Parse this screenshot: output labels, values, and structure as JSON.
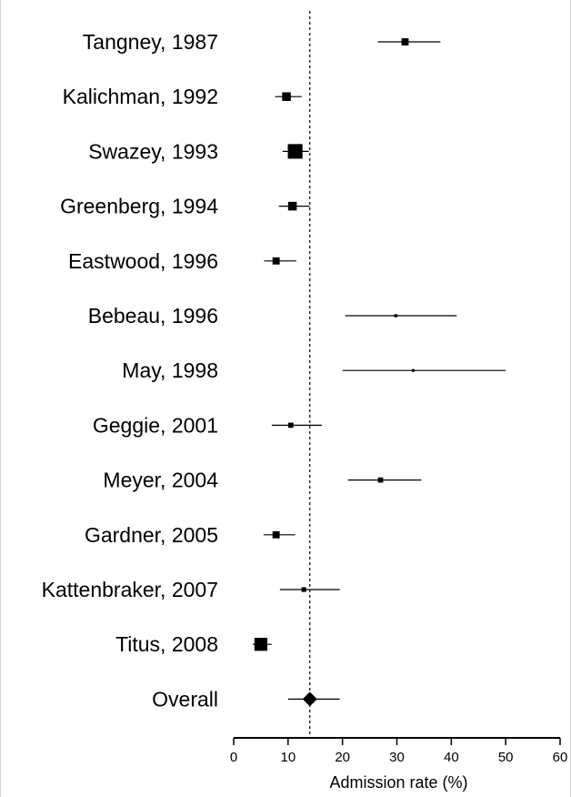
{
  "chart_data": {
    "type": "forest",
    "xlabel": "Admission rate (%)",
    "xlim": [
      0,
      60
    ],
    "xticks": [
      0,
      10,
      20,
      30,
      40,
      50,
      60
    ],
    "reference_line": 14,
    "grid": false,
    "studies": [
      {
        "label": "Tangney, 1987",
        "estimate": 31.5,
        "lower": 26.5,
        "upper": 38.0,
        "weight": 2
      },
      {
        "label": "Kalichman, 1992",
        "estimate": 9.7,
        "lower": 7.6,
        "upper": 12.5,
        "weight": 3
      },
      {
        "label": "Swazey, 1993",
        "estimate": 11.3,
        "lower": 9.0,
        "upper": 13.8,
        "weight": 9
      },
      {
        "label": "Greenberg, 1994",
        "estimate": 10.8,
        "lower": 8.3,
        "upper": 14.0,
        "weight": 3
      },
      {
        "label": "Eastwood, 1996",
        "estimate": 7.8,
        "lower": 5.6,
        "upper": 11.5,
        "weight": 2
      },
      {
        "label": "Bebeau, 1996",
        "estimate": 29.8,
        "lower": 20.5,
        "upper": 41.0,
        "weight": 0.3
      },
      {
        "label": "May, 1998",
        "estimate": 33.0,
        "lower": 20.0,
        "upper": 50.0,
        "weight": 0.2
      },
      {
        "label": "Geggie, 2001",
        "estimate": 10.5,
        "lower": 7.0,
        "upper": 16.2,
        "weight": 1
      },
      {
        "label": "Meyer, 2004",
        "estimate": 27.0,
        "lower": 21.0,
        "upper": 34.5,
        "weight": 1
      },
      {
        "label": "Gardner, 2005",
        "estimate": 7.8,
        "lower": 5.5,
        "upper": 11.3,
        "weight": 2
      },
      {
        "label": "Kattenbraker, 2007",
        "estimate": 12.9,
        "lower": 8.5,
        "upper": 19.5,
        "weight": 0.8
      },
      {
        "label": "Titus, 2008",
        "estimate": 5.0,
        "lower": 3.5,
        "upper": 7.0,
        "weight": 7
      }
    ],
    "overall": {
      "label": "Overall",
      "estimate": 14.0,
      "lower": 10.0,
      "upper": 19.5
    }
  }
}
